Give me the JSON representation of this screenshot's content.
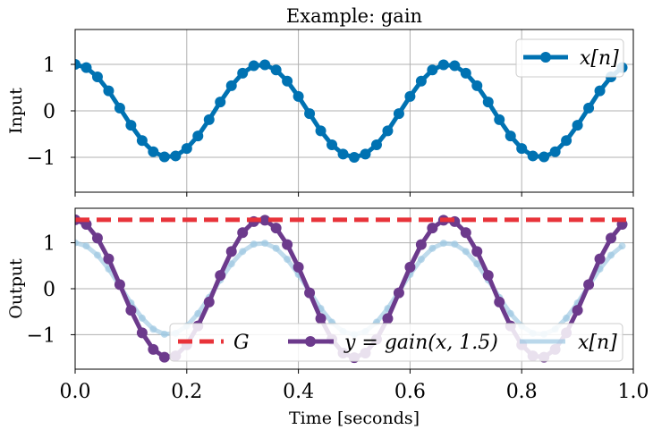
{
  "chart_data": [
    {
      "type": "line",
      "title": "Example: gain",
      "ylabel": "Input",
      "xlabel": "",
      "xlim": [
        0.0,
        1.0
      ],
      "ylim": [
        -1.75,
        1.75
      ],
      "xticks": [
        0.0,
        0.2,
        0.4,
        0.6,
        0.8,
        1.0
      ],
      "xtick_labels": [],
      "yticks": [
        -1,
        0,
        1
      ],
      "ytick_labels": [
        "−1",
        "0",
        "1"
      ],
      "grid": true,
      "legend_position": "top-right",
      "x": [
        0.0,
        0.02,
        0.04,
        0.06,
        0.08,
        0.1,
        0.12,
        0.14,
        0.16,
        0.18,
        0.2,
        0.22,
        0.24,
        0.26,
        0.28,
        0.3,
        0.32,
        0.34,
        0.36,
        0.38,
        0.4,
        0.42,
        0.44,
        0.46,
        0.48,
        0.5,
        0.52,
        0.54,
        0.56,
        0.58,
        0.6,
        0.62,
        0.64,
        0.66,
        0.68,
        0.7,
        0.72,
        0.74,
        0.76,
        0.78,
        0.8,
        0.82,
        0.84,
        0.86,
        0.88,
        0.9,
        0.92,
        0.94,
        0.96,
        0.98
      ],
      "series": [
        {
          "name": "x[n]",
          "color": "#0072B2",
          "style": "line-with-markers",
          "values": [
            1.0,
            0.93,
            0.73,
            0.43,
            0.06,
            -0.31,
            -0.64,
            -0.88,
            -0.99,
            -0.97,
            -0.81,
            -0.54,
            -0.19,
            0.19,
            0.54,
            0.81,
            0.97,
            0.99,
            0.88,
            0.64,
            0.31,
            -0.06,
            -0.43,
            -0.73,
            -0.93,
            -1.0,
            -0.93,
            -0.73,
            -0.43,
            -0.06,
            0.31,
            0.64,
            0.88,
            0.99,
            0.97,
            0.81,
            0.54,
            0.19,
            -0.19,
            -0.54,
            -0.81,
            -0.97,
            -0.99,
            -0.88,
            -0.64,
            -0.31,
            0.06,
            0.43,
            0.73,
            0.93
          ]
        }
      ]
    },
    {
      "type": "line",
      "title": "",
      "ylabel": "Output",
      "xlabel": "Time [seconds]",
      "xlim": [
        0.0,
        1.0
      ],
      "ylim": [
        -1.75,
        1.75
      ],
      "xticks": [
        0.0,
        0.2,
        0.4,
        0.6,
        0.8,
        1.0
      ],
      "xtick_labels": [
        "0.0",
        "0.2",
        "0.4",
        "0.6",
        "0.8",
        "1.0"
      ],
      "yticks": [
        -1,
        0,
        1
      ],
      "ytick_labels": [
        "−1",
        "0",
        "1"
      ],
      "grid": true,
      "legend_position": "lower-center",
      "x": [
        0.0,
        0.02,
        0.04,
        0.06,
        0.08,
        0.1,
        0.12,
        0.14,
        0.16,
        0.18,
        0.2,
        0.22,
        0.24,
        0.26,
        0.28,
        0.3,
        0.32,
        0.34,
        0.36,
        0.38,
        0.4,
        0.42,
        0.44,
        0.46,
        0.48,
        0.5,
        0.52,
        0.54,
        0.56,
        0.58,
        0.6,
        0.62,
        0.64,
        0.66,
        0.68,
        0.7,
        0.72,
        0.74,
        0.76,
        0.78,
        0.8,
        0.82,
        0.84,
        0.86,
        0.88,
        0.9,
        0.92,
        0.94,
        0.96,
        0.98
      ],
      "reference_line": {
        "name": "G",
        "value": 1.5,
        "color": "#E8333A",
        "style": "dashed"
      },
      "series": [
        {
          "name": "y = gain(x, 1.5)",
          "color": "#6C3A8C",
          "style": "line-with-markers",
          "values": [
            1.5,
            1.4,
            1.1,
            0.65,
            0.09,
            -0.47,
            -0.96,
            -1.32,
            -1.49,
            -1.46,
            -1.22,
            -0.81,
            -0.29,
            0.29,
            0.81,
            1.22,
            1.46,
            1.49,
            1.32,
            0.96,
            0.47,
            -0.09,
            -0.65,
            -1.1,
            -1.4,
            -1.5,
            -1.4,
            -1.1,
            -0.65,
            -0.09,
            0.47,
            0.96,
            1.32,
            1.49,
            1.46,
            1.22,
            0.81,
            0.29,
            -0.29,
            -0.81,
            -1.22,
            -1.46,
            -1.49,
            -1.32,
            -0.96,
            -0.47,
            0.09,
            0.65,
            1.1,
            1.4
          ]
        },
        {
          "name": "x[n]",
          "color": "#9CC7E2",
          "style": "faded-line-with-markers",
          "values": [
            1.0,
            0.93,
            0.73,
            0.43,
            0.06,
            -0.31,
            -0.64,
            -0.88,
            -0.99,
            -0.97,
            -0.81,
            -0.54,
            -0.19,
            0.19,
            0.54,
            0.81,
            0.97,
            0.99,
            0.88,
            0.64,
            0.31,
            -0.06,
            -0.43,
            -0.73,
            -0.93,
            -1.0,
            -0.93,
            -0.73,
            -0.43,
            -0.06,
            0.31,
            0.64,
            0.88,
            0.99,
            0.97,
            0.81,
            0.54,
            0.19,
            -0.19,
            -0.54,
            -0.81,
            -0.97,
            -0.99,
            -0.88,
            -0.64,
            -0.31,
            0.06,
            0.43,
            0.73,
            0.93
          ]
        }
      ]
    }
  ]
}
